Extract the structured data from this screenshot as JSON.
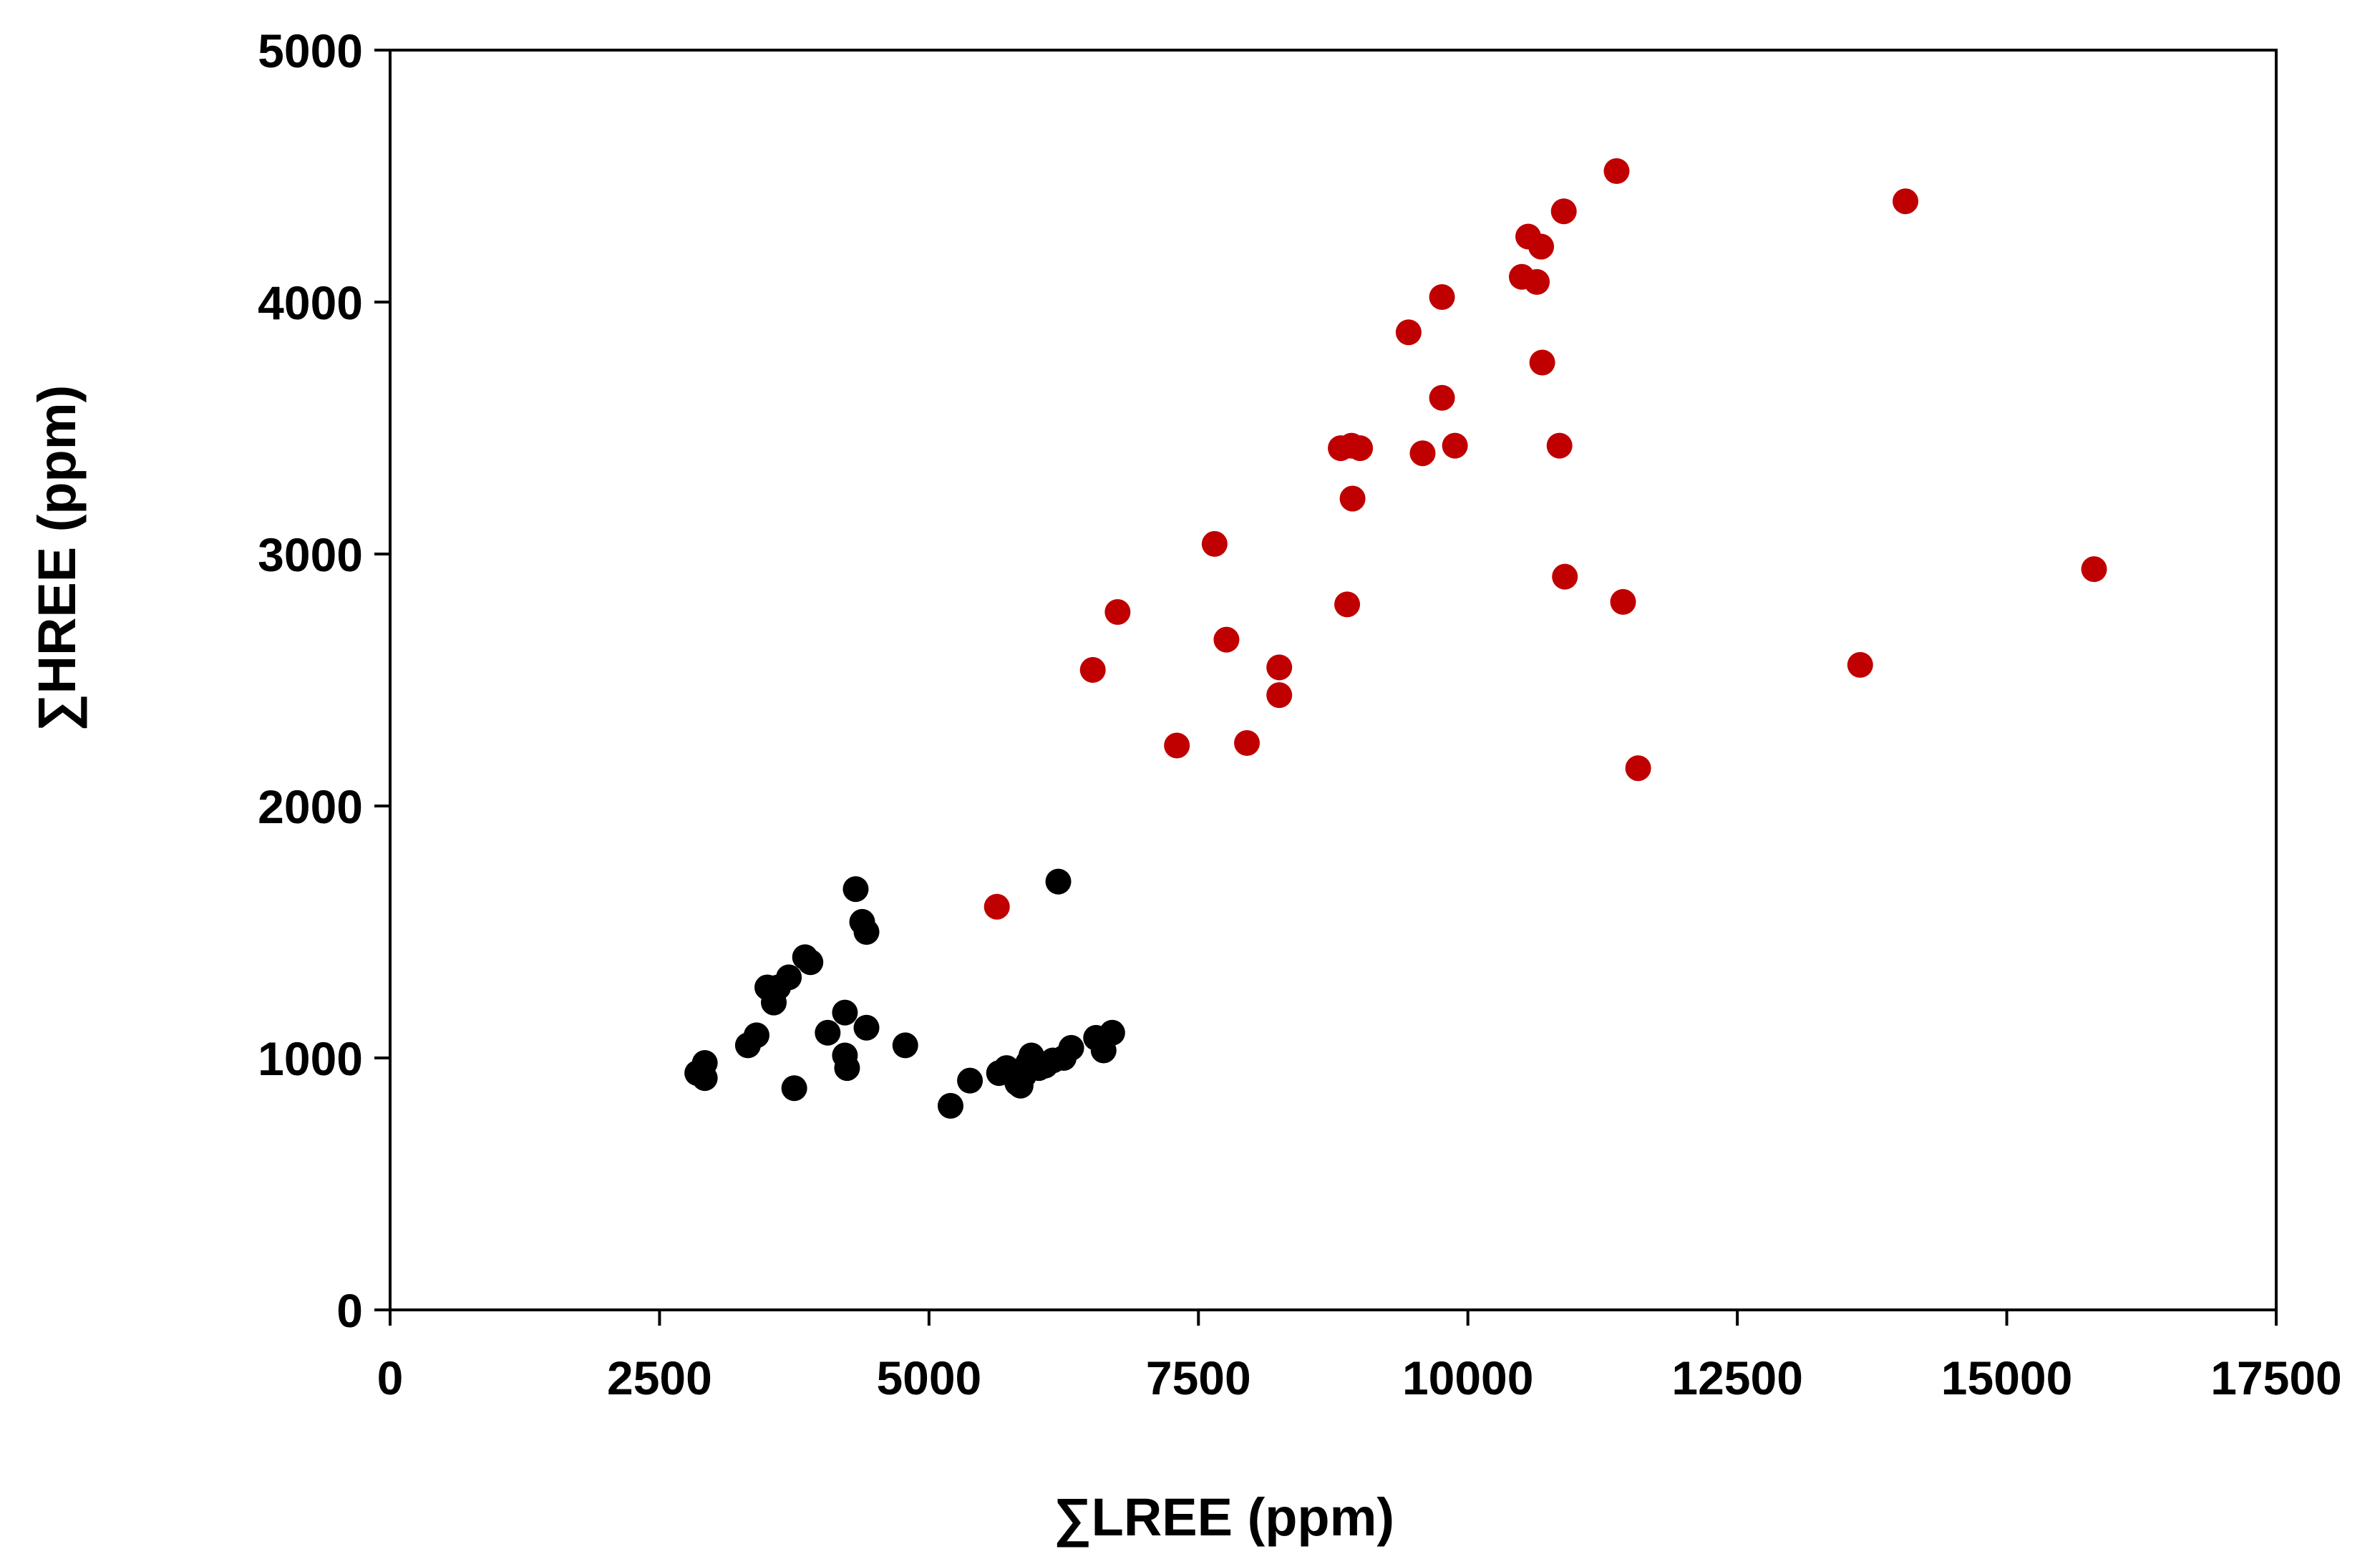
{
  "chart_data": {
    "type": "scatter",
    "title": "",
    "xlabel": "∑LREE (ppm)",
    "ylabel": "∑HREE (ppm)",
    "xlim": [
      0,
      17500
    ],
    "ylim": [
      0,
      5000
    ],
    "x_ticks": [
      0,
      2500,
      5000,
      7500,
      10000,
      12500,
      15000,
      17500
    ],
    "y_ticks": [
      0,
      1000,
      2000,
      3000,
      4000,
      5000
    ],
    "x_tick_labels": [
      "0",
      "2500",
      "5000",
      "7500",
      "10000",
      "12500",
      "15000",
      "17500"
    ],
    "y_tick_labels": [
      "0",
      "1000",
      "2000",
      "3000",
      "4000",
      "5000"
    ],
    "grid": false,
    "legend": "none",
    "series": [
      {
        "color": "#000000",
        "points": [
          [
            2850,
            940
          ],
          [
            2920,
            980
          ],
          [
            2920,
            920
          ],
          [
            3320,
            1050
          ],
          [
            3400,
            1090
          ],
          [
            3500,
            1280
          ],
          [
            3560,
            1220
          ],
          [
            3600,
            1280
          ],
          [
            3700,
            1320
          ],
          [
            3750,
            880
          ],
          [
            3850,
            1400
          ],
          [
            3900,
            1380
          ],
          [
            4060,
            1100
          ],
          [
            4220,
            1180
          ],
          [
            4220,
            1010
          ],
          [
            4240,
            960
          ],
          [
            4320,
            1670
          ],
          [
            4380,
            1540
          ],
          [
            4420,
            1500
          ],
          [
            4420,
            1120
          ],
          [
            4780,
            1050
          ],
          [
            5200,
            810
          ],
          [
            5380,
            910
          ],
          [
            5650,
            940
          ],
          [
            5720,
            960
          ],
          [
            5780,
            940
          ],
          [
            5820,
            900
          ],
          [
            5850,
            890
          ],
          [
            5880,
            930
          ],
          [
            5920,
            980
          ],
          [
            5950,
            1010
          ],
          [
            6020,
            960
          ],
          [
            6080,
            970
          ],
          [
            6150,
            990
          ],
          [
            6200,
            1700
          ],
          [
            6250,
            1000
          ],
          [
            6320,
            1040
          ],
          [
            6550,
            1080
          ],
          [
            6620,
            1030
          ],
          [
            6700,
            1100
          ]
        ]
      },
      {
        "color": "#c00000",
        "points": [
          [
            5630,
            1600
          ],
          [
            6520,
            2540
          ],
          [
            6750,
            2770
          ],
          [
            7300,
            2240
          ],
          [
            7650,
            3040
          ],
          [
            7760,
            2660
          ],
          [
            7950,
            2250
          ],
          [
            8250,
            2440
          ],
          [
            8250,
            2550
          ],
          [
            8820,
            3420
          ],
          [
            8880,
            2800
          ],
          [
            8920,
            3430
          ],
          [
            8930,
            3220
          ],
          [
            9000,
            3420
          ],
          [
            9450,
            3880
          ],
          [
            9580,
            3400
          ],
          [
            9760,
            3620
          ],
          [
            9760,
            4020
          ],
          [
            9880,
            3430
          ],
          [
            10500,
            4100
          ],
          [
            10560,
            4260
          ],
          [
            10640,
            4080
          ],
          [
            10680,
            4220
          ],
          [
            10690,
            3760
          ],
          [
            10850,
            3430
          ],
          [
            10890,
            4360
          ],
          [
            10900,
            2910
          ],
          [
            11380,
            4520
          ],
          [
            11440,
            2810
          ],
          [
            11580,
            2150
          ],
          [
            13640,
            2560
          ],
          [
            14060,
            4400
          ],
          [
            15810,
            2940
          ]
        ]
      }
    ]
  }
}
